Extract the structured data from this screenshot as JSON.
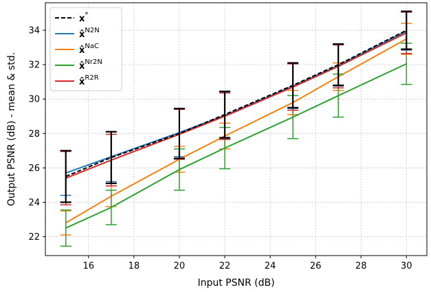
{
  "chart_data": {
    "type": "line",
    "xlabel": "Input PSNR (dB)",
    "ylabel": "Output PSNR (dB) - mean & std.",
    "xlim": [
      14.1,
      30.9
    ],
    "ylim": [
      20.9,
      35.6
    ],
    "x": [
      15,
      17,
      20,
      22,
      25,
      27,
      30
    ],
    "xticks": [
      "16",
      "18",
      "20",
      "22",
      "24",
      "26",
      "28",
      "30"
    ],
    "yticks": [
      "22",
      "24",
      "26",
      "28",
      "30",
      "32",
      "34"
    ],
    "grid": true,
    "legend_position": "top-left",
    "series": [
      {
        "name": "x*",
        "label_base": "x",
        "label_sup": "*",
        "color": "#000000",
        "dash": true,
        "mean": [
          25.5,
          26.6,
          28.0,
          29.1,
          30.8,
          32.0,
          34.0
        ],
        "std": [
          1.5,
          1.5,
          1.45,
          1.35,
          1.3,
          1.2,
          1.1
        ]
      },
      {
        "name": "x̂N2N",
        "label_base": "x̂",
        "label_sup": "N2N",
        "color": "#1f77b4",
        "dash": false,
        "mean": [
          25.7,
          26.65,
          28.05,
          29.05,
          30.75,
          31.95,
          33.95
        ],
        "std": [
          1.3,
          1.45,
          1.4,
          1.35,
          1.3,
          1.2,
          1.1
        ]
      },
      {
        "name": "x̂NaC",
        "label_base": "x̂",
        "label_sup": "NaC",
        "color": "#ff7f0e",
        "dash": false,
        "mean": [
          22.8,
          24.35,
          26.5,
          27.85,
          29.8,
          31.3,
          33.5
        ],
        "std": [
          0.7,
          0.6,
          0.75,
          0.75,
          0.7,
          0.8,
          0.9
        ]
      },
      {
        "name": "x̂Nr2N",
        "label_base": "x̂",
        "label_sup": "Nr2N",
        "color": "#2ca02c",
        "dash": false,
        "mean": [
          22.5,
          23.7,
          25.9,
          27.15,
          28.95,
          30.2,
          32.05
        ],
        "std": [
          1.05,
          1.0,
          1.2,
          1.2,
          1.25,
          1.25,
          1.2
        ]
      },
      {
        "name": "x̂R2R",
        "label_base": "x̂",
        "label_sup": "R2R",
        "color": "#d62728",
        "dash": false,
        "mean": [
          25.4,
          26.45,
          27.95,
          29.0,
          30.7,
          31.9,
          33.85
        ],
        "std": [
          1.55,
          1.5,
          1.45,
          1.35,
          1.35,
          1.25,
          1.2
        ]
      }
    ]
  }
}
